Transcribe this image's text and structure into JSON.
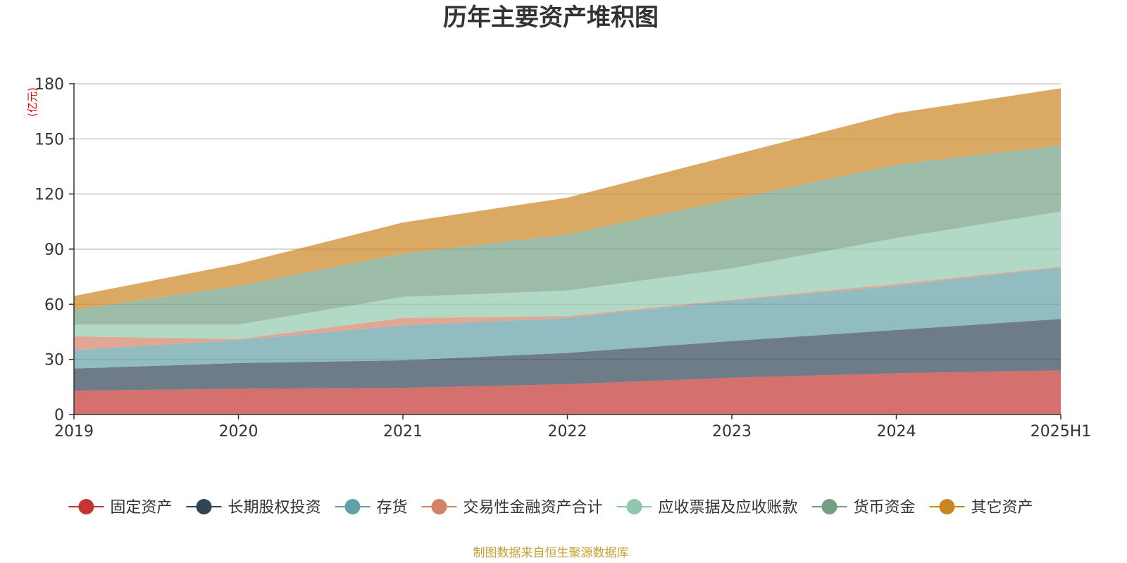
{
  "chart_data": {
    "type": "area",
    "stacked": true,
    "title": "历年主要资产堆积图",
    "unit_label": "(亿元)",
    "x": [
      "2019",
      "2020",
      "2021",
      "2022",
      "2023",
      "2024",
      "2025H1"
    ],
    "ylim": [
      0,
      180
    ],
    "y_ticks": [
      "0",
      "30",
      "60",
      "90",
      "120",
      "150",
      "180"
    ],
    "grid": true,
    "legend_position": "bottom",
    "series": [
      {
        "name": "固定资产",
        "color": "#c23531",
        "values": [
          13,
          14,
          14.5,
          16.5,
          20,
          22.5,
          24
        ]
      },
      {
        "name": "长期股权投资",
        "color": "#2f4554",
        "values": [
          12,
          14,
          15,
          17,
          20,
          23.5,
          28
        ]
      },
      {
        "name": "存货",
        "color": "#61a0a8",
        "values": [
          10,
          12.5,
          19,
          19,
          22,
          24,
          28
        ]
      },
      {
        "name": "交易性金融资产合计",
        "color": "#d48265",
        "values": [
          7.5,
          0.5,
          4,
          1,
          0.5,
          1,
          0.5
        ]
      },
      {
        "name": "应收票据及应收账款",
        "color": "#91c7ae",
        "values": [
          6.5,
          8,
          11.5,
          14,
          17,
          25,
          30
        ]
      },
      {
        "name": "货币资金",
        "color": "#749f83",
        "values": [
          8,
          21,
          23.5,
          30.5,
          37.5,
          40,
          36
        ]
      },
      {
        "name": "其它资产",
        "color": "#ca8622",
        "values": [
          7.5,
          12,
          17,
          20,
          24,
          28,
          31
        ]
      }
    ]
  },
  "footer": {
    "source": "制图数据来自恒生聚源数据库"
  }
}
